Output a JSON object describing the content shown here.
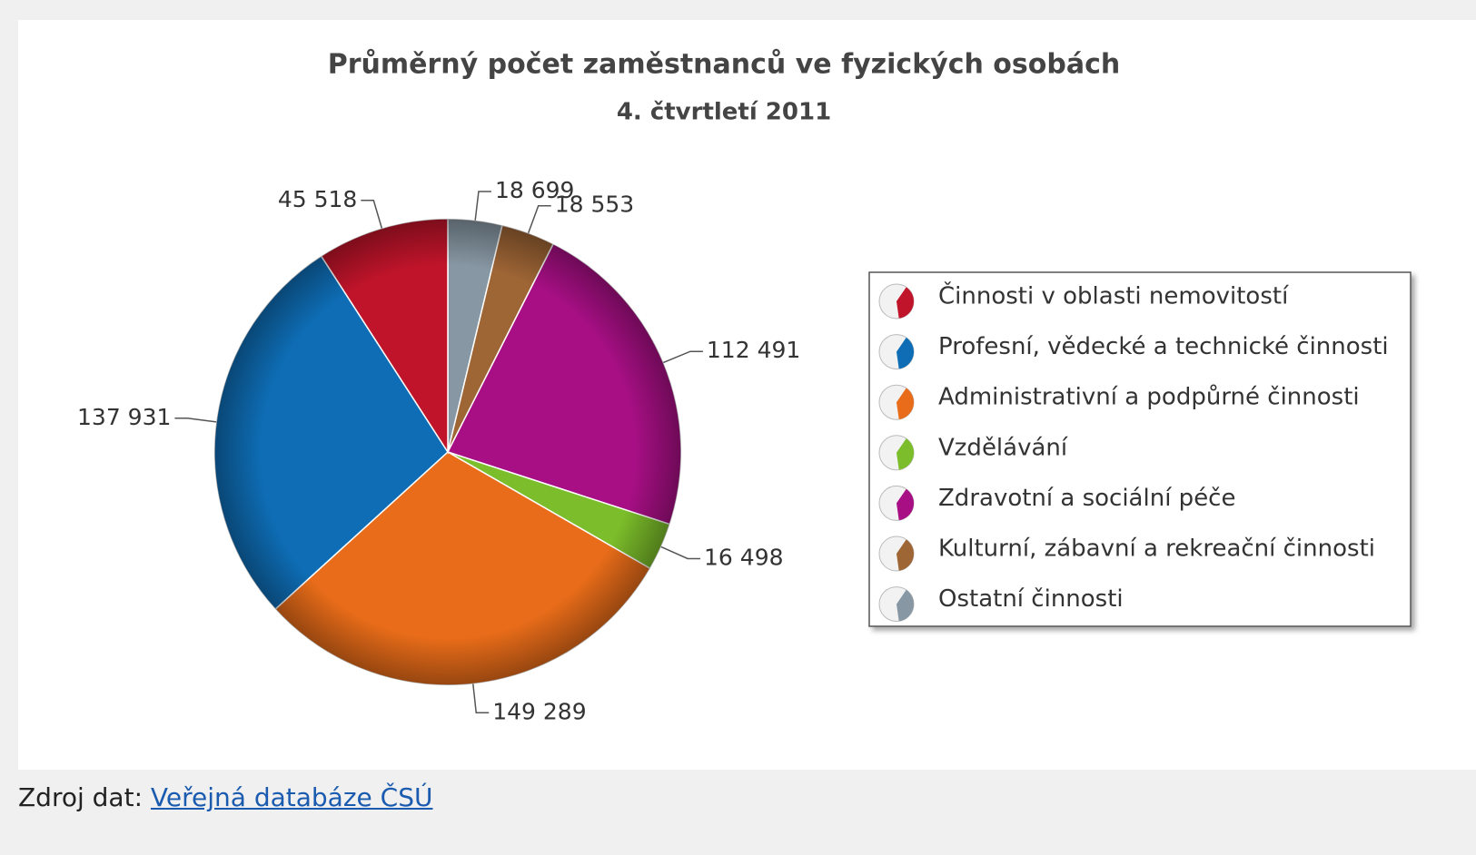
{
  "chart_data": {
    "type": "pie",
    "title": "Průměrný počet zaměstnanců ve fyzických osobách",
    "subtitle": "4. čtvrtletí 2011",
    "categories": [
      "Činnosti v oblasti nemovitostí",
      "Profesní, vědecké a technické činnosti",
      "Administrativní a podpůrné činnosti",
      "Vzdělávání",
      "Zdravotní a sociální péče",
      "Kulturní, zábavní a rekreační činnosti",
      "Ostatní činnosti"
    ],
    "values": [
      45518,
      137931,
      149289,
      16498,
      112491,
      18553,
      18699
    ],
    "value_labels": [
      "45 518",
      "137 931",
      "149 289",
      "16 498",
      "112 491",
      "18 553",
      "18 699"
    ],
    "colors": [
      "#c0142a",
      "#0e6db5",
      "#e86c19",
      "#7bbd2a",
      "#a80f85",
      "#9e6535",
      "#8797a3"
    ]
  },
  "footer": {
    "label": "Zdroj dat:",
    "link": "Veřejná databáze ČSÚ"
  }
}
